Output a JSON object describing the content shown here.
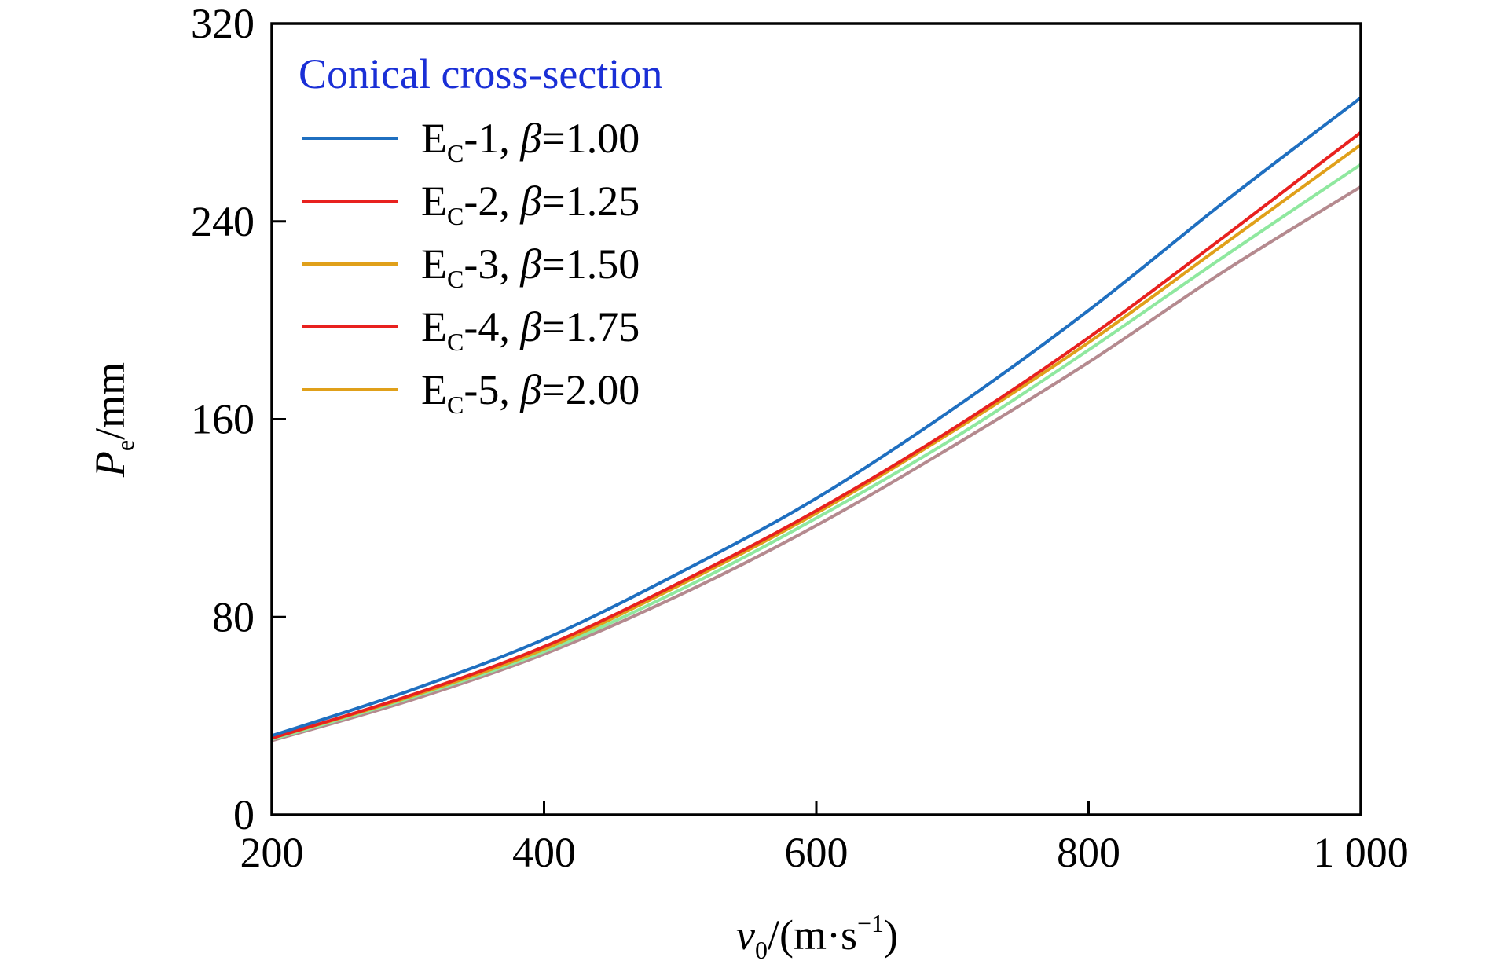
{
  "chart_data": {
    "type": "line",
    "title": "",
    "x_ticks": [
      "200",
      "400",
      "600",
      "800",
      "1 000"
    ],
    "y_ticks": [
      "0",
      "80",
      "160",
      "240",
      "320"
    ],
    "xlim": [
      200,
      1000
    ],
    "ylim": [
      0,
      320
    ],
    "grid": false,
    "legend_placement": "top-left",
    "legend_title": "Conical cross-section",
    "legend_title_color": "#1a2fd6",
    "x": [
      200,
      300,
      400,
      500,
      600,
      700,
      800,
      900,
      1000
    ],
    "series": [
      {
        "legend_base": "E",
        "legend_sub": "C",
        "legend_index": "-1, ",
        "legend_beta": "β",
        "legend_value": "=1.00",
        "color": "#1f6fc0",
        "values": [
          32,
          50,
          71,
          98,
          128,
          164,
          204,
          248,
          290
        ]
      },
      {
        "legend_base": "E",
        "legend_sub": "C",
        "legend_index": "-2, ",
        "legend_beta": "β",
        "legend_value": "=1.25",
        "color": "#e8211f",
        "values": [
          31,
          48,
          68,
          94,
          123,
          156,
          193,
          234,
          276
        ]
      },
      {
        "legend_base": "E",
        "legend_sub": "C",
        "legend_index": "-3, ",
        "legend_beta": "β",
        "legend_value": "=1.50",
        "color": "#e0a01a",
        "values": [
          31,
          47.5,
          67,
          93,
          122,
          155,
          191,
          231,
          271
        ]
      },
      {
        "legend_base": "E",
        "legend_sub": "C",
        "legend_index": "-4, ",
        "legend_beta": "β",
        "legend_value": "=1.75",
        "color": "#8fe89f",
        "values": [
          30.5,
          47,
          66,
          91,
          120,
          152,
          188,
          226,
          263
        ]
      },
      {
        "legend_base": "E",
        "legend_sub": "C",
        "legend_index": "-5, ",
        "legend_beta": "β",
        "legend_value": "=2.00",
        "color": "#b58a8f",
        "values": [
          30,
          46,
          65,
          89,
          117,
          149,
          183,
          220,
          254
        ]
      }
    ],
    "legend_line_colors": [
      "#1f6fc0",
      "#e8211f",
      "#e0a01a",
      "#e8211f",
      "#e0a01a"
    ],
    "xlabel": {
      "base": "v",
      "sub": "0",
      "unit": "/(m·s",
      "sup": "−1",
      "close": ")"
    },
    "ylabel": {
      "base": "P",
      "sub": "e",
      "unit": "/mm"
    }
  }
}
